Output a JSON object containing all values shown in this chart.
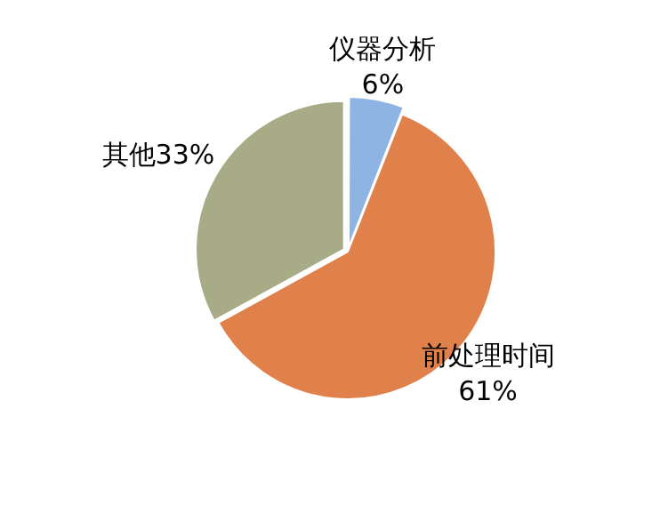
{
  "chart_data": {
    "type": "pie",
    "categories": [
      "仪器分析",
      "前处理时间",
      "其他"
    ],
    "values": [
      6,
      61,
      33
    ],
    "colors": [
      "#8eb4e3",
      "#e0804a",
      "#a7ab86"
    ],
    "value_labels": [
      "6%",
      "61%",
      "33%"
    ],
    "legend": false
  }
}
